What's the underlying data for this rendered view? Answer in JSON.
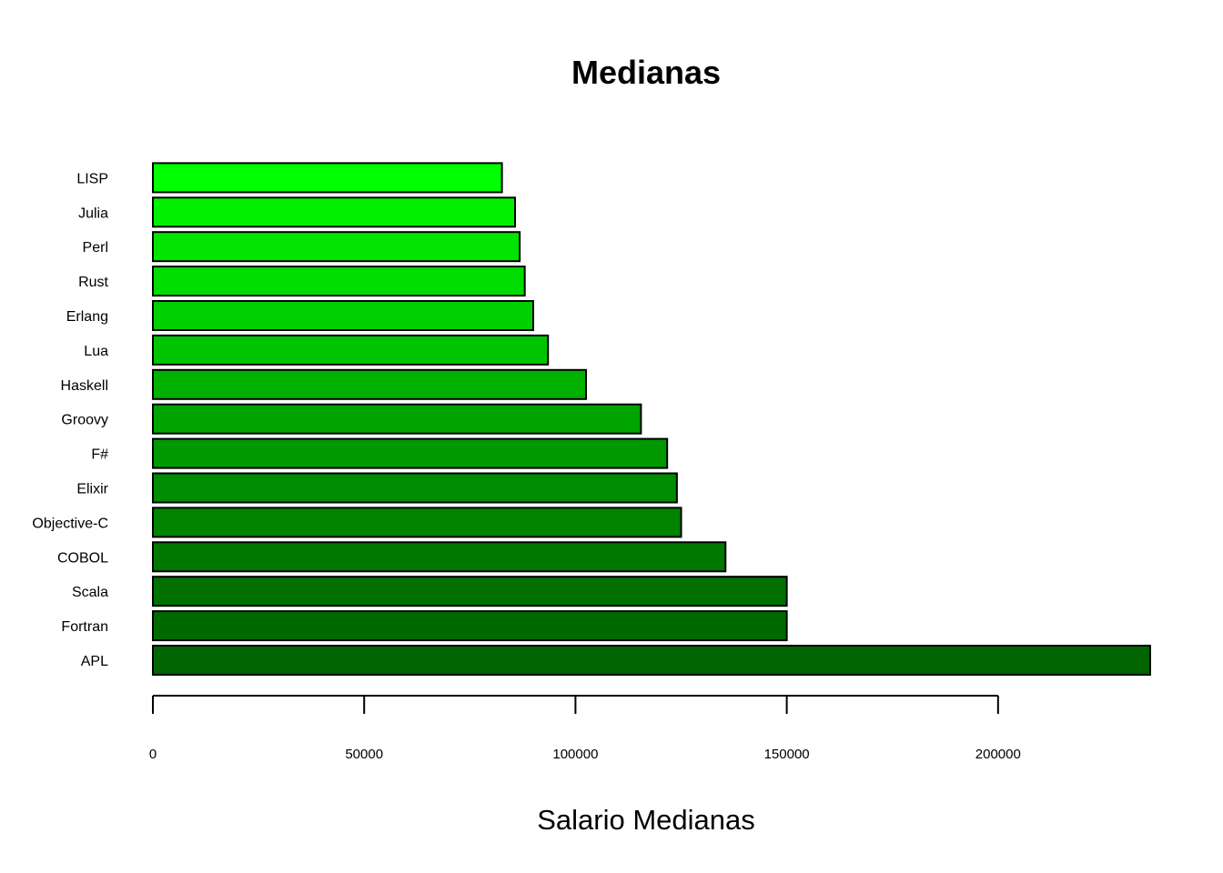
{
  "chart_data": {
    "type": "bar",
    "orientation": "horizontal",
    "title": "Medianas",
    "xlabel": "Salario Medianas",
    "ylabel": "",
    "categories": [
      "APL",
      "Fortran",
      "Scala",
      "COBOL",
      "Objective-C",
      "Elixir",
      "F#",
      "Groovy",
      "Haskell",
      "Lua",
      "Erlang",
      "Rust",
      "Perl",
      "Julia",
      "LISP"
    ],
    "values": [
      236000,
      150000,
      150000,
      135500,
      125000,
      124000,
      121700,
      115500,
      102500,
      93500,
      90000,
      88000,
      86800,
      85700,
      82600
    ],
    "colors": [
      "#006400",
      "#006a00",
      "#007000",
      "#007800",
      "#008400",
      "#008c00",
      "#009800",
      "#00a400",
      "#00b000",
      "#00c400",
      "#00d000",
      "#00dc00",
      "#00e400",
      "#00f000",
      "#00ff00"
    ],
    "xlim": [
      0,
      236000
    ],
    "xticks": [
      0,
      50000,
      100000,
      150000,
      200000
    ],
    "xtick_labels": [
      "0",
      "50000",
      "100000",
      "150000",
      "200000"
    ],
    "grid": false,
    "legend": "none"
  }
}
